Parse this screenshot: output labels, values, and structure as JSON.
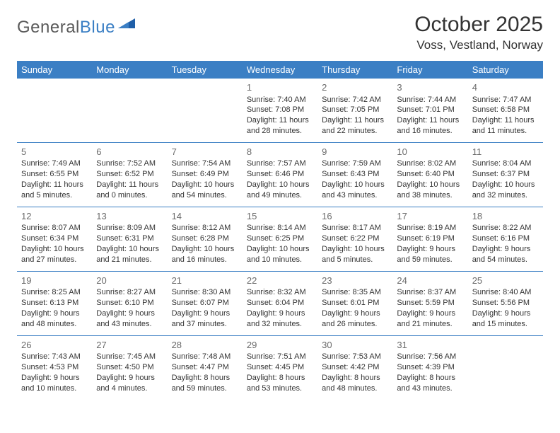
{
  "brand": {
    "name_part1": "General",
    "name_part2": "Blue"
  },
  "title": "October 2025",
  "location": "Voss, Vestland, Norway",
  "colors": {
    "header_bg": "#3b7fc4",
    "header_text": "#ffffff",
    "row_border": "#3b7fc4",
    "text": "#333333",
    "daynum": "#6a6a6a",
    "background": "#ffffff",
    "logo_gray": "#5a5a5a",
    "logo_blue": "#3b7fc4"
  },
  "fonts": {
    "family": "Arial, Helvetica, sans-serif",
    "title_size_pt": 22,
    "location_size_pt": 13,
    "header_size_pt": 10,
    "cell_size_pt": 8,
    "daynum_size_pt": 10
  },
  "weekdays": [
    "Sunday",
    "Monday",
    "Tuesday",
    "Wednesday",
    "Thursday",
    "Friday",
    "Saturday"
  ],
  "weeks": [
    [
      null,
      null,
      null,
      {
        "n": "1",
        "sunrise": "7:40 AM",
        "sunset": "7:08 PM",
        "daylight": "11 hours and 28 minutes."
      },
      {
        "n": "2",
        "sunrise": "7:42 AM",
        "sunset": "7:05 PM",
        "daylight": "11 hours and 22 minutes."
      },
      {
        "n": "3",
        "sunrise": "7:44 AM",
        "sunset": "7:01 PM",
        "daylight": "11 hours and 16 minutes."
      },
      {
        "n": "4",
        "sunrise": "7:47 AM",
        "sunset": "6:58 PM",
        "daylight": "11 hours and 11 minutes."
      }
    ],
    [
      {
        "n": "5",
        "sunrise": "7:49 AM",
        "sunset": "6:55 PM",
        "daylight": "11 hours and 5 minutes."
      },
      {
        "n": "6",
        "sunrise": "7:52 AM",
        "sunset": "6:52 PM",
        "daylight": "11 hours and 0 minutes."
      },
      {
        "n": "7",
        "sunrise": "7:54 AM",
        "sunset": "6:49 PM",
        "daylight": "10 hours and 54 minutes."
      },
      {
        "n": "8",
        "sunrise": "7:57 AM",
        "sunset": "6:46 PM",
        "daylight": "10 hours and 49 minutes."
      },
      {
        "n": "9",
        "sunrise": "7:59 AM",
        "sunset": "6:43 PM",
        "daylight": "10 hours and 43 minutes."
      },
      {
        "n": "10",
        "sunrise": "8:02 AM",
        "sunset": "6:40 PM",
        "daylight": "10 hours and 38 minutes."
      },
      {
        "n": "11",
        "sunrise": "8:04 AM",
        "sunset": "6:37 PM",
        "daylight": "10 hours and 32 minutes."
      }
    ],
    [
      {
        "n": "12",
        "sunrise": "8:07 AM",
        "sunset": "6:34 PM",
        "daylight": "10 hours and 27 minutes."
      },
      {
        "n": "13",
        "sunrise": "8:09 AM",
        "sunset": "6:31 PM",
        "daylight": "10 hours and 21 minutes."
      },
      {
        "n": "14",
        "sunrise": "8:12 AM",
        "sunset": "6:28 PM",
        "daylight": "10 hours and 16 minutes."
      },
      {
        "n": "15",
        "sunrise": "8:14 AM",
        "sunset": "6:25 PM",
        "daylight": "10 hours and 10 minutes."
      },
      {
        "n": "16",
        "sunrise": "8:17 AM",
        "sunset": "6:22 PM",
        "daylight": "10 hours and 5 minutes."
      },
      {
        "n": "17",
        "sunrise": "8:19 AM",
        "sunset": "6:19 PM",
        "daylight": "9 hours and 59 minutes."
      },
      {
        "n": "18",
        "sunrise": "8:22 AM",
        "sunset": "6:16 PM",
        "daylight": "9 hours and 54 minutes."
      }
    ],
    [
      {
        "n": "19",
        "sunrise": "8:25 AM",
        "sunset": "6:13 PM",
        "daylight": "9 hours and 48 minutes."
      },
      {
        "n": "20",
        "sunrise": "8:27 AM",
        "sunset": "6:10 PM",
        "daylight": "9 hours and 43 minutes."
      },
      {
        "n": "21",
        "sunrise": "8:30 AM",
        "sunset": "6:07 PM",
        "daylight": "9 hours and 37 minutes."
      },
      {
        "n": "22",
        "sunrise": "8:32 AM",
        "sunset": "6:04 PM",
        "daylight": "9 hours and 32 minutes."
      },
      {
        "n": "23",
        "sunrise": "8:35 AM",
        "sunset": "6:01 PM",
        "daylight": "9 hours and 26 minutes."
      },
      {
        "n": "24",
        "sunrise": "8:37 AM",
        "sunset": "5:59 PM",
        "daylight": "9 hours and 21 minutes."
      },
      {
        "n": "25",
        "sunrise": "8:40 AM",
        "sunset": "5:56 PM",
        "daylight": "9 hours and 15 minutes."
      }
    ],
    [
      {
        "n": "26",
        "sunrise": "7:43 AM",
        "sunset": "4:53 PM",
        "daylight": "9 hours and 10 minutes."
      },
      {
        "n": "27",
        "sunrise": "7:45 AM",
        "sunset": "4:50 PM",
        "daylight": "9 hours and 4 minutes."
      },
      {
        "n": "28",
        "sunrise": "7:48 AM",
        "sunset": "4:47 PM",
        "daylight": "8 hours and 59 minutes."
      },
      {
        "n": "29",
        "sunrise": "7:51 AM",
        "sunset": "4:45 PM",
        "daylight": "8 hours and 53 minutes."
      },
      {
        "n": "30",
        "sunrise": "7:53 AM",
        "sunset": "4:42 PM",
        "daylight": "8 hours and 48 minutes."
      },
      {
        "n": "31",
        "sunrise": "7:56 AM",
        "sunset": "4:39 PM",
        "daylight": "8 hours and 43 minutes."
      },
      null
    ]
  ],
  "labels": {
    "sunrise": "Sunrise:",
    "sunset": "Sunset:",
    "daylight": "Daylight:"
  }
}
